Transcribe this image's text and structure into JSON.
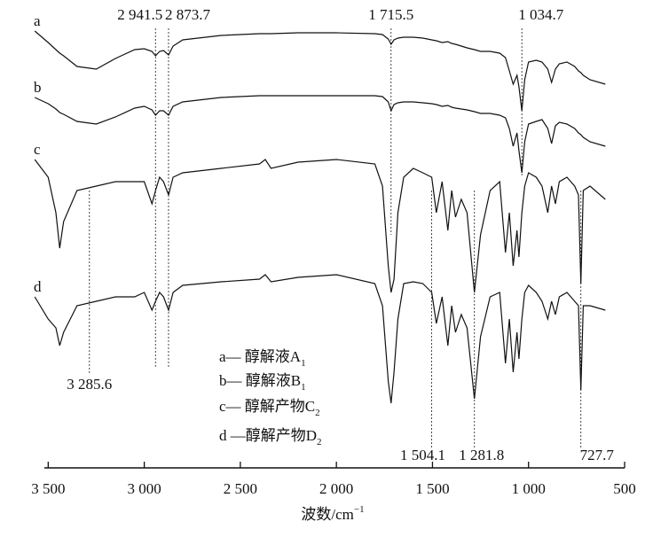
{
  "chart_data": {
    "type": "line",
    "xlabel": "波数/cm",
    "xlabel_sup": "−1",
    "xlim": [
      3520,
      500
    ],
    "xticks": [
      {
        "value": 3500,
        "label": "3 500"
      },
      {
        "value": 3000,
        "label": "3 000"
      },
      {
        "value": 2500,
        "label": "2 500"
      },
      {
        "value": 2000,
        "label": "2 000"
      },
      {
        "value": 1500,
        "label": "1 500"
      },
      {
        "value": 1000,
        "label": "1 000"
      },
      500
    ],
    "ylim": [
      0,
      510
    ],
    "x": [
      3570,
      3500,
      3460,
      3440,
      3420,
      3350,
      3250,
      3150,
      3050,
      3000,
      2960,
      2941.5,
      2920,
      2900,
      2873.7,
      2850,
      2800,
      2600,
      2400,
      2370,
      2340,
      2200,
      2000,
      1800,
      1760,
      1730,
      1715.5,
      1700,
      1680,
      1650,
      1600,
      1550,
      1504.1,
      1480,
      1450,
      1420,
      1400,
      1380,
      1350,
      1320,
      1281.8,
      1250,
      1200,
      1150,
      1120,
      1100,
      1080,
      1060,
      1050,
      1034.7,
      1020,
      1000,
      960,
      930,
      900,
      880,
      860,
      840,
      800,
      760,
      740,
      727.7,
      715,
      680,
      600
    ],
    "series": [
      {
        "name": "a",
        "color": "#111111",
        "values": [
          490,
          477,
          469,
          465,
          462,
          450,
          447,
          459,
          469,
          470,
          467,
          462,
          467,
          468,
          463,
          473,
          480,
          485,
          487,
          487,
          487,
          488,
          488,
          487,
          486,
          481,
          475,
          480,
          482,
          483,
          483,
          482,
          480,
          479,
          477,
          478,
          476,
          475,
          473,
          471,
          469,
          467,
          467,
          465,
          460,
          445,
          430,
          440,
          427,
          400,
          435,
          455,
          457,
          455,
          447,
          432,
          447,
          453,
          455,
          450,
          445,
          443,
          440,
          435,
          430
        ]
      },
      {
        "name": "b",
        "color": "#111111",
        "values": [
          415,
          408,
          402,
          398,
          396,
          388,
          385,
          393,
          403,
          405,
          401,
          395,
          400,
          400,
          395,
          405,
          410,
          415,
          417,
          417,
          417,
          417,
          417,
          417,
          416,
          410,
          400,
          407,
          409,
          410,
          410,
          409,
          408,
          407,
          405,
          406,
          404,
          403,
          402,
          401,
          399,
          397,
          397,
          395,
          392,
          380,
          360,
          375,
          355,
          330,
          365,
          385,
          388,
          390,
          380,
          363,
          383,
          387,
          385,
          380,
          375,
          373,
          370,
          365,
          360
        ]
      },
      {
        "name": "c",
        "color": "#111111",
        "values": [
          345,
          325,
          285,
          245,
          275,
          310,
          315,
          320,
          320,
          320,
          295,
          310,
          325,
          320,
          305,
          325,
          330,
          335,
          340,
          345,
          335,
          342,
          345,
          340,
          315,
          225,
          195,
          210,
          285,
          325,
          335,
          330,
          325,
          285,
          320,
          265,
          310,
          280,
          300,
          285,
          195,
          260,
          310,
          320,
          240,
          285,
          225,
          265,
          235,
          285,
          315,
          330,
          325,
          315,
          285,
          315,
          295,
          320,
          325,
          315,
          305,
          205,
          310,
          315,
          300
        ]
      },
      {
        "name": "d",
        "color": "#111111",
        "values": [
          190,
          165,
          155,
          135,
          150,
          180,
          185,
          190,
          190,
          195,
          175,
          185,
          195,
          190,
          175,
          195,
          203,
          207,
          210,
          215,
          207,
          212,
          215,
          205,
          180,
          95,
          70,
          105,
          165,
          205,
          207,
          205,
          195,
          160,
          190,
          135,
          180,
          150,
          170,
          155,
          75,
          145,
          190,
          195,
          115,
          165,
          105,
          150,
          120,
          165,
          195,
          203,
          195,
          185,
          165,
          185,
          170,
          190,
          195,
          185,
          180,
          85,
          180,
          180,
          175
        ]
      }
    ],
    "legend": [
      {
        "text": "a— 醇解液A",
        "sub": "1"
      },
      {
        "text": "b— 醇解液B",
        "sub": "1"
      },
      {
        "text": "c— 醇解产物C",
        "sub": "2"
      },
      {
        "text": "d —醇解产物D",
        "sub": "2"
      }
    ],
    "annotations": [
      {
        "text": "2 941.5",
        "x": 2941.5
      },
      {
        "text": "2 873.7",
        "x": 2873.7
      },
      {
        "text": "1 715.5",
        "x": 1715.5
      },
      {
        "text": "1 034.7",
        "x": 1034.7
      },
      {
        "text": "3 285.6",
        "x": 3285.6
      },
      {
        "text": "1 504.1",
        "x": 1504.1
      },
      {
        "text": "1 281.8",
        "x": 1281.8
      },
      {
        "text": "727.7",
        "x": 727.7
      }
    ]
  }
}
